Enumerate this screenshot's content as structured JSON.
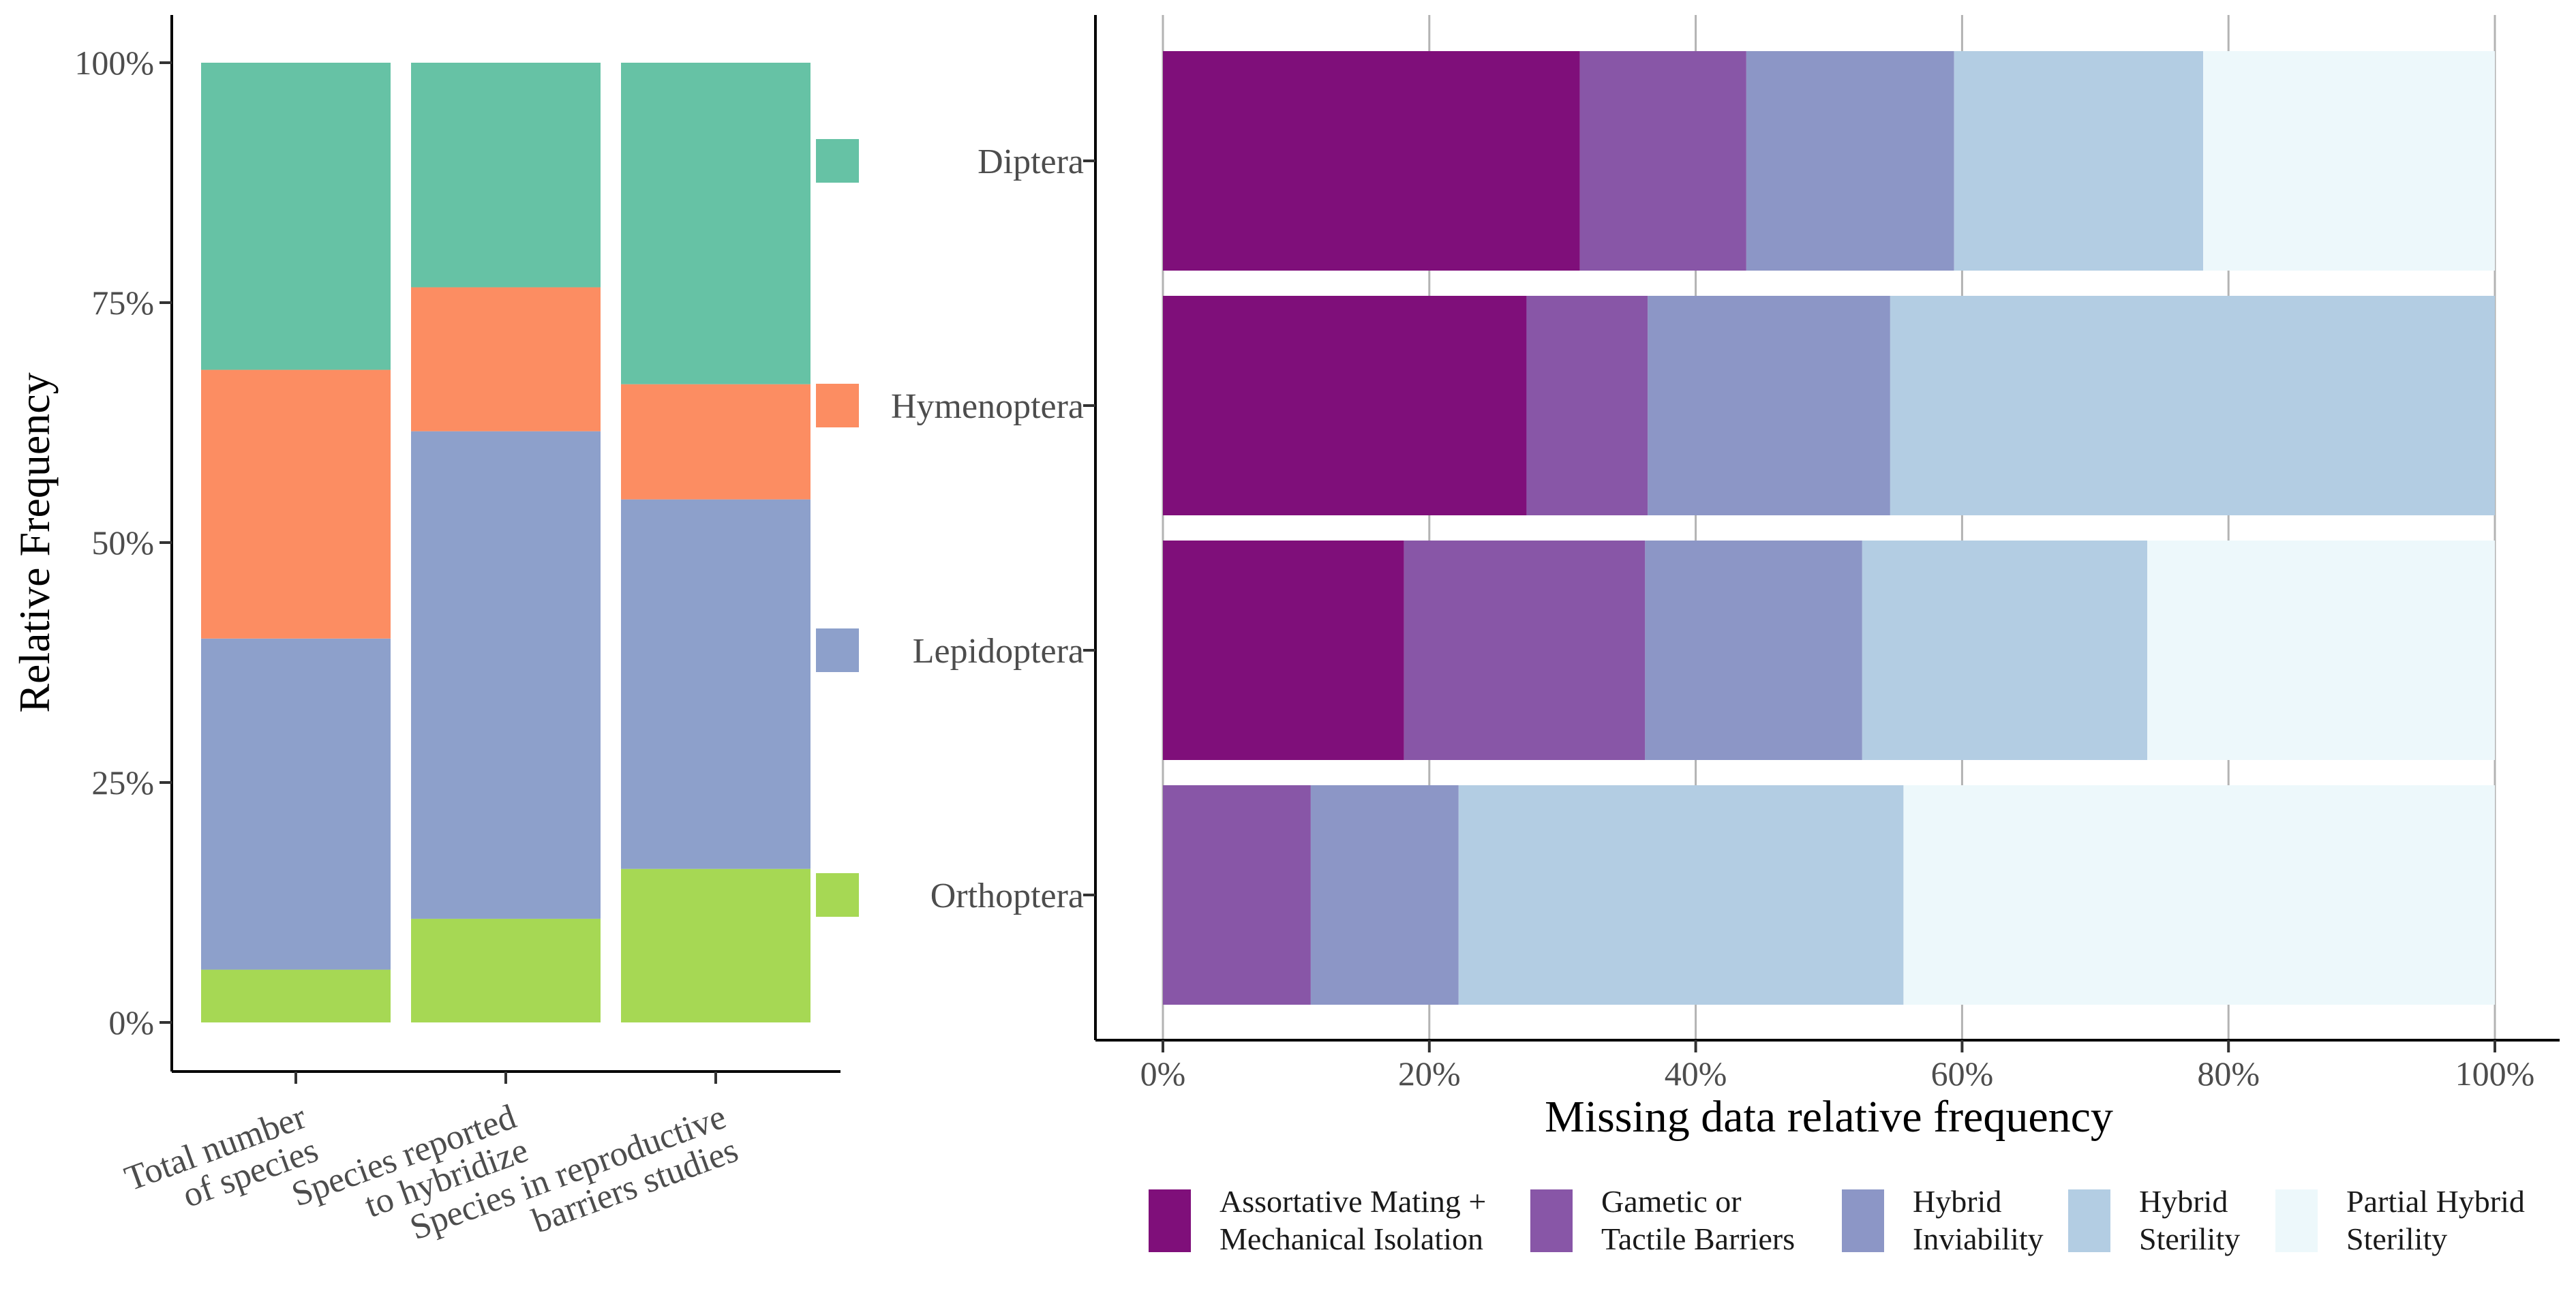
{
  "chart_data": [
    {
      "type": "bar",
      "stacked": true,
      "orientation": "vertical",
      "position": "left",
      "ylabel": "Relative Frequency",
      "xlabel": "",
      "yticks": [
        "0%",
        "25%",
        "50%",
        "75%",
        "100%"
      ],
      "ylim": [
        0,
        1
      ],
      "grid": false,
      "categories": [
        {
          "lines": [
            "Total number",
            "of species"
          ]
        },
        {
          "lines": [
            "Species reported",
            "to hybridize"
          ]
        },
        {
          "lines": [
            "Species in reproductive",
            "barriers studies"
          ]
        }
      ],
      "series": [
        {
          "key": "orthoptera",
          "color": "#a6d854",
          "values": [
            0.055,
            0.108,
            0.16
          ]
        },
        {
          "key": "lepidoptera",
          "color": "#8da0cb",
          "values": [
            0.345,
            0.508,
            0.385
          ]
        },
        {
          "key": "hymenoptera",
          "color": "#fc8d62",
          "values": [
            0.28,
            0.15,
            0.12
          ]
        },
        {
          "key": "diptera",
          "color": "#66c2a5",
          "values": [
            0.32,
            0.234,
            0.335
          ]
        }
      ],
      "legend": "right-of-bars, colour keys aligned with the Diptera, Hymenoptera, Lepidoptera and Orthoptera rows"
    },
    {
      "type": "bar",
      "stacked": true,
      "orientation": "horizontal",
      "position": "right",
      "xlabel": "Missing data relative frequency",
      "ylabel": "",
      "xticks": [
        "0%",
        "20%",
        "40%",
        "60%",
        "80%",
        "100%"
      ],
      "xlim": [
        0,
        1
      ],
      "grid": "vertical major lines",
      "categories": [
        "Diptera",
        "Hymenoptera",
        "Lepidoptera",
        "Orthoptera"
      ],
      "series": [
        {
          "name_lines": [
            "Assortative Mating +",
            "Mechanical Isolation"
          ],
          "color": "#7f0f7a",
          "values": [
            0.313,
            0.273,
            0.181,
            0.0
          ]
        },
        {
          "name_lines": [
            "Gametic or",
            "Tactile Barriers"
          ],
          "color": "#8856a7",
          "values": [
            0.125,
            0.091,
            0.181,
            0.111
          ]
        },
        {
          "name_lines": [
            "Hybrid",
            "Inviability"
          ],
          "color": "#8c96c6",
          "values": [
            0.156,
            0.182,
            0.163,
            0.111
          ]
        },
        {
          "name_lines": [
            "Hybrid",
            "Sterility"
          ],
          "color": "#b3cde3",
          "values": [
            0.187,
            0.454,
            0.214,
            0.334
          ]
        },
        {
          "name_lines": [
            "Partial Hybrid",
            "Sterility"
          ],
          "color": "#edf8fb",
          "values": [
            0.219,
            0.0,
            0.261,
            0.444
          ]
        }
      ],
      "legend": "bottom"
    }
  ]
}
